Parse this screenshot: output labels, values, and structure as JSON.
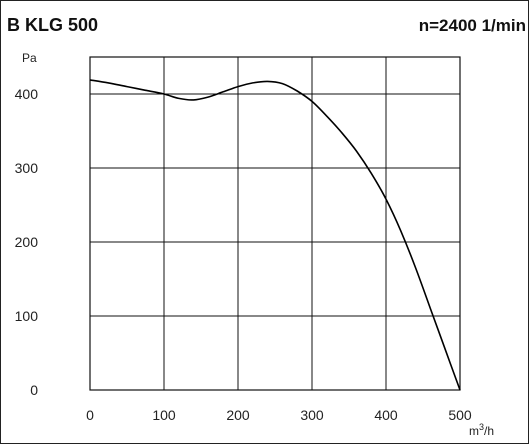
{
  "chart_data": {
    "type": "line",
    "title": "B KLG 500",
    "annotation": "n=2400 1/min",
    "ylabel": "Pa",
    "xlabel_base": "m",
    "xlabel_sup": "3",
    "xlabel_tail": "/h",
    "xlim": [
      0,
      500
    ],
    "ylim": [
      0,
      400
    ],
    "x_ticks": [
      0,
      100,
      200,
      300,
      400,
      500
    ],
    "y_ticks": [
      0,
      100,
      200,
      300,
      400
    ],
    "grid": true,
    "series": [
      {
        "x": [
          0,
          25,
          50,
          75,
          100,
          120,
          140,
          160,
          180,
          200,
          220,
          240,
          260,
          280,
          300,
          320,
          340,
          360,
          380,
          400,
          420,
          440,
          460,
          480,
          500
        ],
        "y": [
          419,
          415,
          410,
          405,
          400,
          394,
          392,
          396,
          403,
          410,
          415,
          417,
          414,
          404,
          390,
          370,
          348,
          323,
          293,
          258,
          215,
          165,
          110,
          55,
          0
        ]
      }
    ]
  }
}
